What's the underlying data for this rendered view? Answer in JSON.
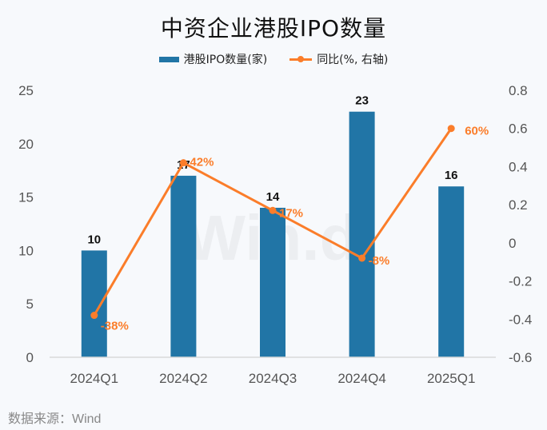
{
  "chart_data": {
    "type": "bar",
    "title": "中资企业港股IPO数量",
    "categories": [
      "2024Q1",
      "2024Q2",
      "2024Q3",
      "2024Q4",
      "2025Q1"
    ],
    "series": [
      {
        "name": "港股IPO数量(家)",
        "type": "bar",
        "axis": "left",
        "values": [
          10,
          17,
          14,
          23,
          16
        ],
        "labels": [
          "10",
          "17",
          "14",
          "23",
          "16"
        ],
        "color": "#2175a6"
      },
      {
        "name": "同比(%, 右轴)",
        "type": "line",
        "axis": "right",
        "values": [
          -0.38,
          0.42,
          0.17,
          -0.08,
          0.6
        ],
        "labels": [
          "-38%",
          "42%",
          "17%",
          "-8%",
          "60%"
        ],
        "color": "#fb7d2a"
      }
    ],
    "ylim_left": [
      0,
      25
    ],
    "yticks_left": [
      "0",
      "5",
      "10",
      "15",
      "20",
      "25"
    ],
    "ylim_right": [
      -0.6,
      0.8
    ],
    "yticks_right": [
      "-0.6",
      "-0.4",
      "-0.2",
      "0",
      "0.2",
      "0.4",
      "0.6",
      "0.8"
    ],
    "legend": "top",
    "grid": false
  },
  "source": "数据来源：Wind"
}
